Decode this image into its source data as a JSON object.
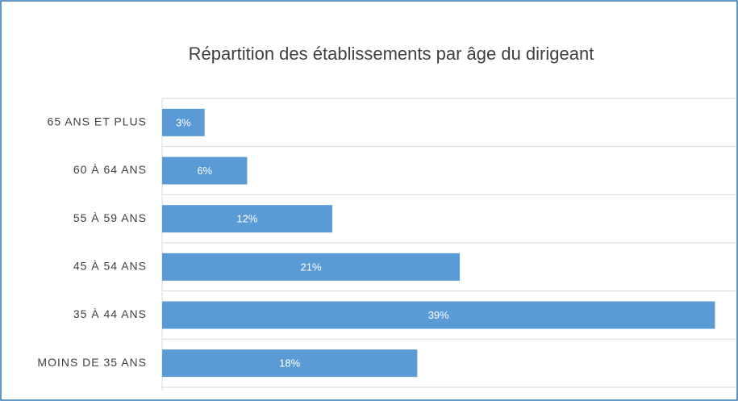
{
  "chart_data": {
    "type": "hbar",
    "title": "Répartition des établissements par âge du dirigeant",
    "categories": [
      "65 ANS ET PLUS",
      "60 À 64 ANS",
      "55 À 59 ANS",
      "45 À 54 ANS",
      "35 À 44 ANS",
      "MOINS DE 35 ANS"
    ],
    "values": [
      3,
      6,
      12,
      21,
      39,
      18
    ],
    "value_labels": [
      "3%",
      "6%",
      "12%",
      "21%",
      "39%",
      "18%"
    ],
    "color": "#5b9bd5",
    "xlim": [
      0,
      40
    ]
  }
}
